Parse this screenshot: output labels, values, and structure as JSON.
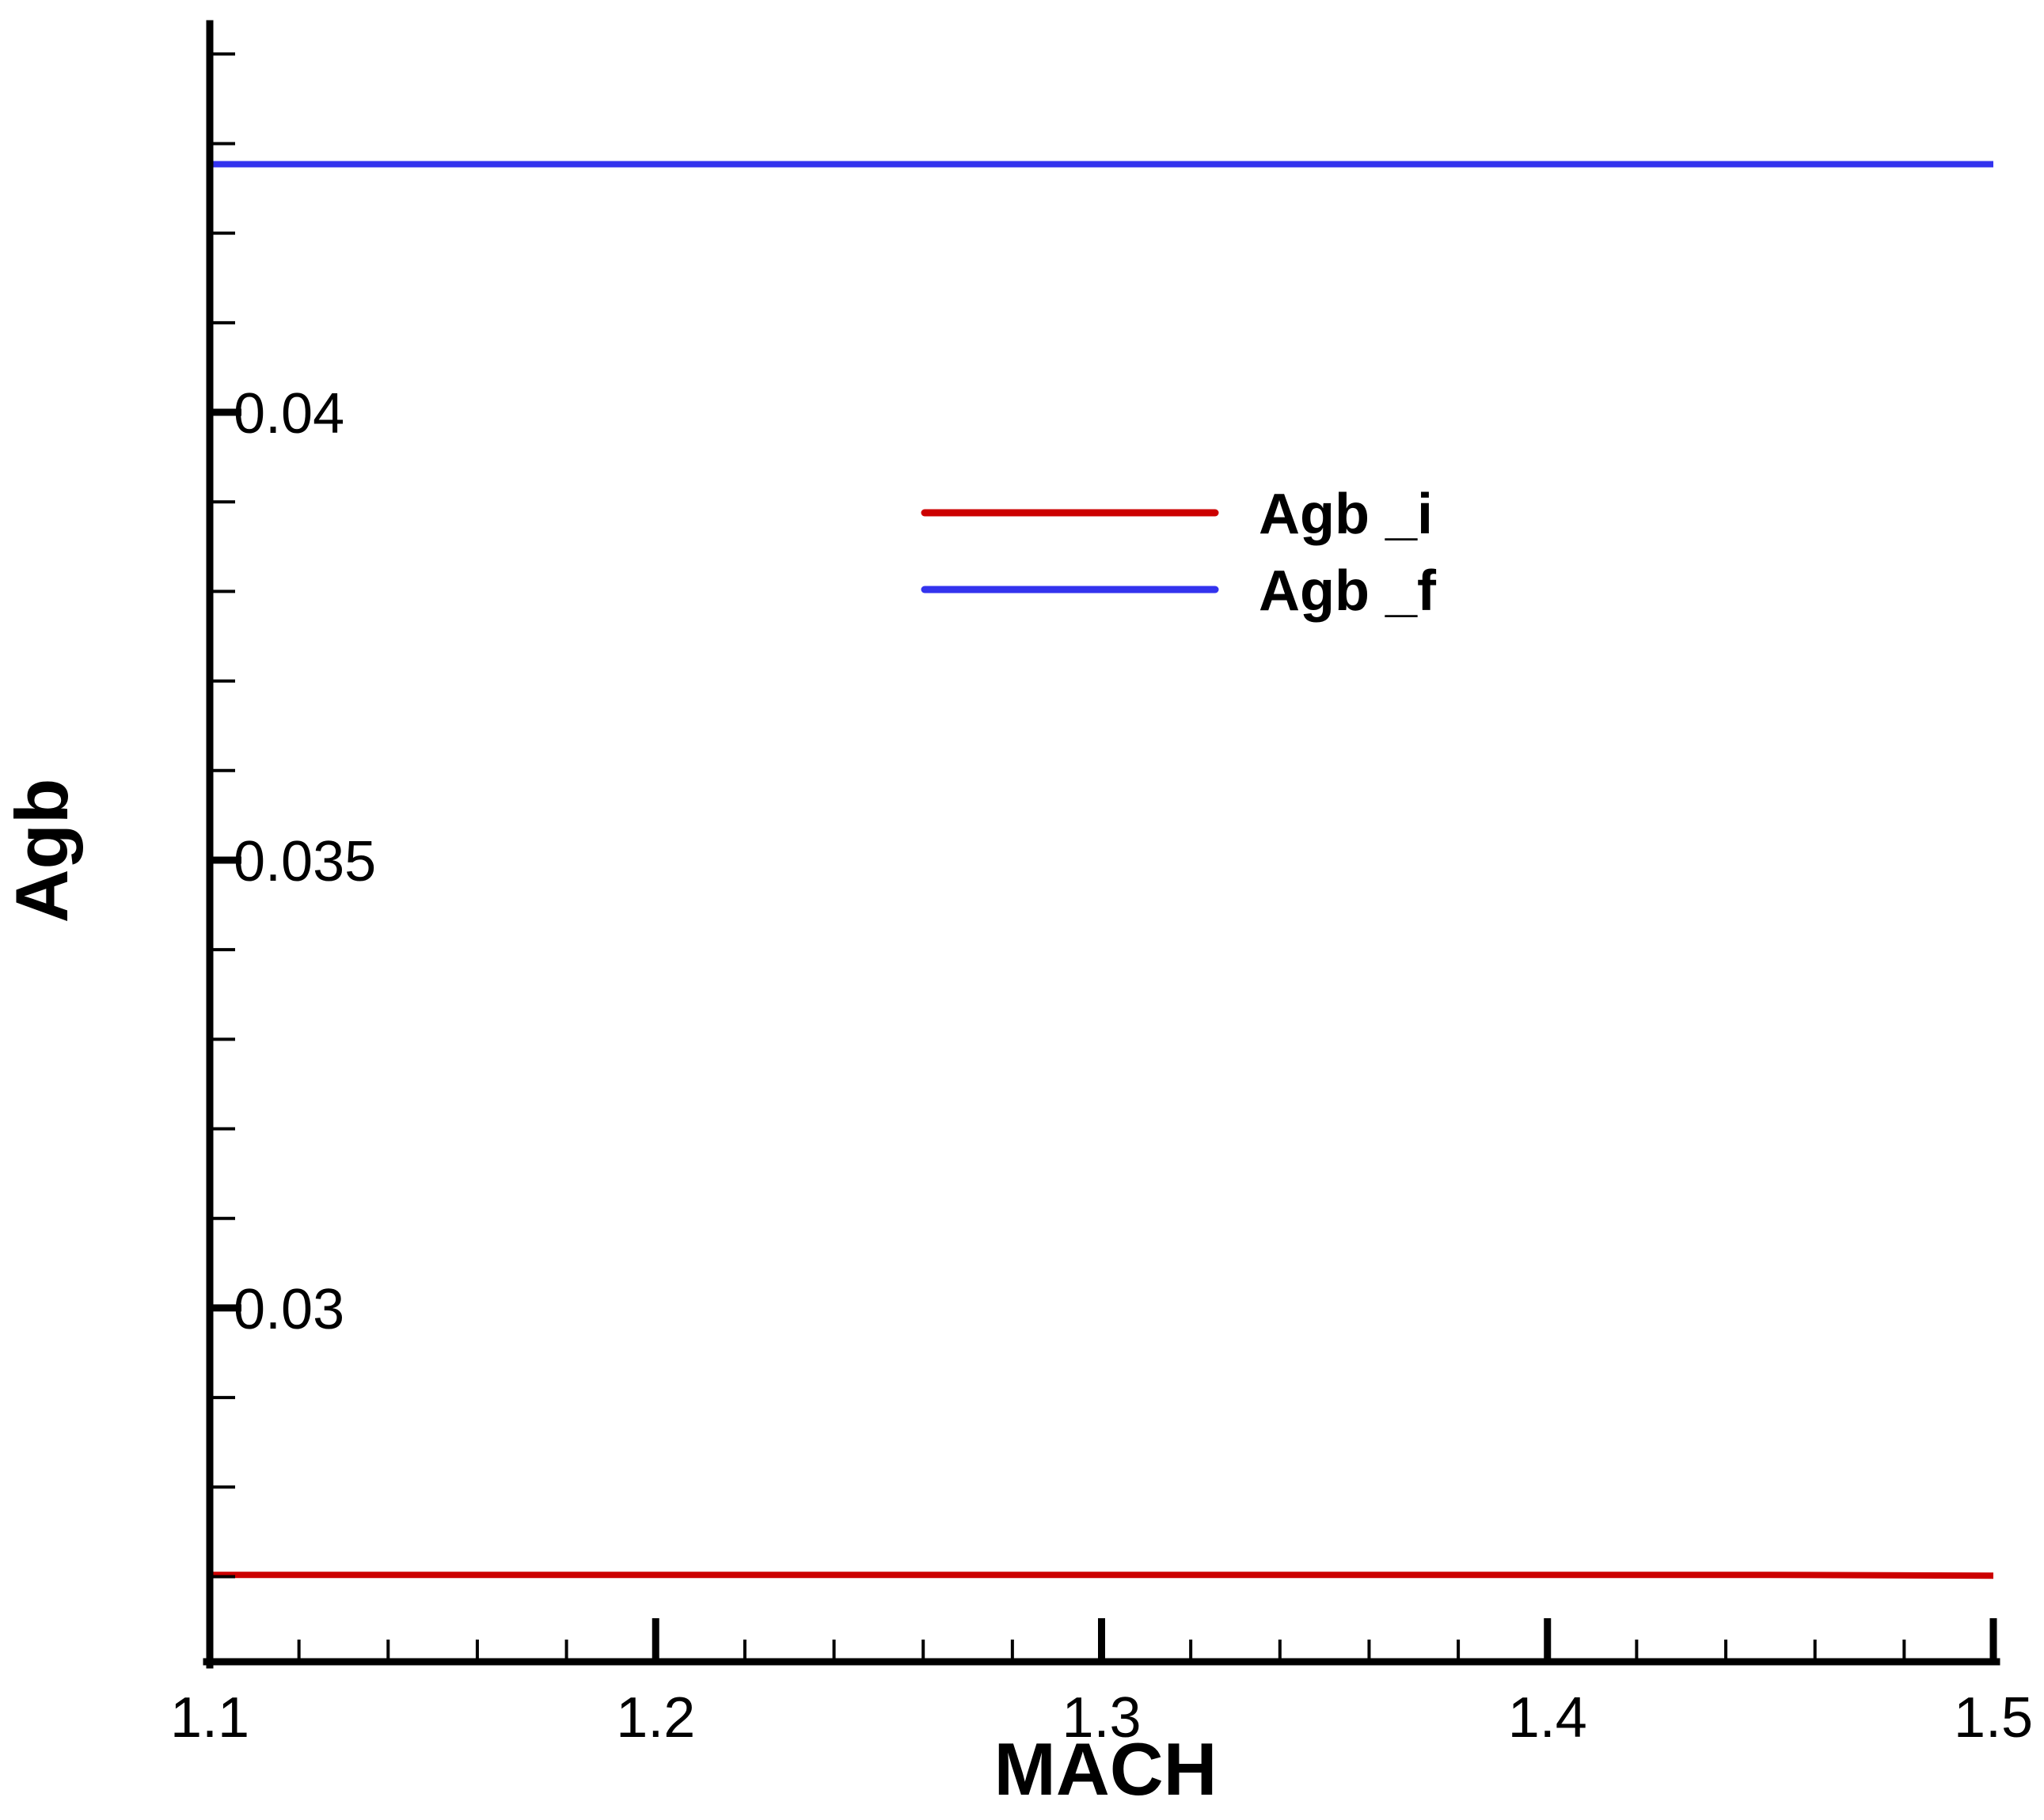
{
  "chart_data": {
    "type": "line",
    "title": "",
    "xlabel": "MACH",
    "ylabel": "Agb",
    "xlim": [
      1.1,
      1.5
    ],
    "ylim": [
      0.02605,
      0.04425
    ],
    "x_ticks": [
      1.1,
      1.2,
      1.3,
      1.4,
      1.5
    ],
    "x_tick_labels": [
      "1.1",
      "1.2",
      "1.3",
      "1.4",
      "1.5"
    ],
    "y_ticks": [
      0.03,
      0.035,
      0.04
    ],
    "y_tick_labels": [
      "0.03",
      "0.035",
      "0.04"
    ],
    "x_minor_step": 0.02,
    "y_minor_step": 0.001,
    "grid": false,
    "legend_position": "upper-center",
    "series": [
      {
        "name": "Agb _i",
        "color": "#cc0000",
        "x": [
          1.1,
          1.2,
          1.3,
          1.4,
          1.45,
          1.5
        ],
        "y": [
          0.02702,
          0.02702,
          0.02702,
          0.02702,
          0.02702,
          0.02701
        ]
      },
      {
        "name": "Agb _f",
        "color": "#3333ee",
        "x": [
          1.1,
          1.2,
          1.3,
          1.4,
          1.5
        ],
        "y": [
          0.04277,
          0.04277,
          0.04277,
          0.04277,
          0.04277
        ]
      }
    ]
  }
}
